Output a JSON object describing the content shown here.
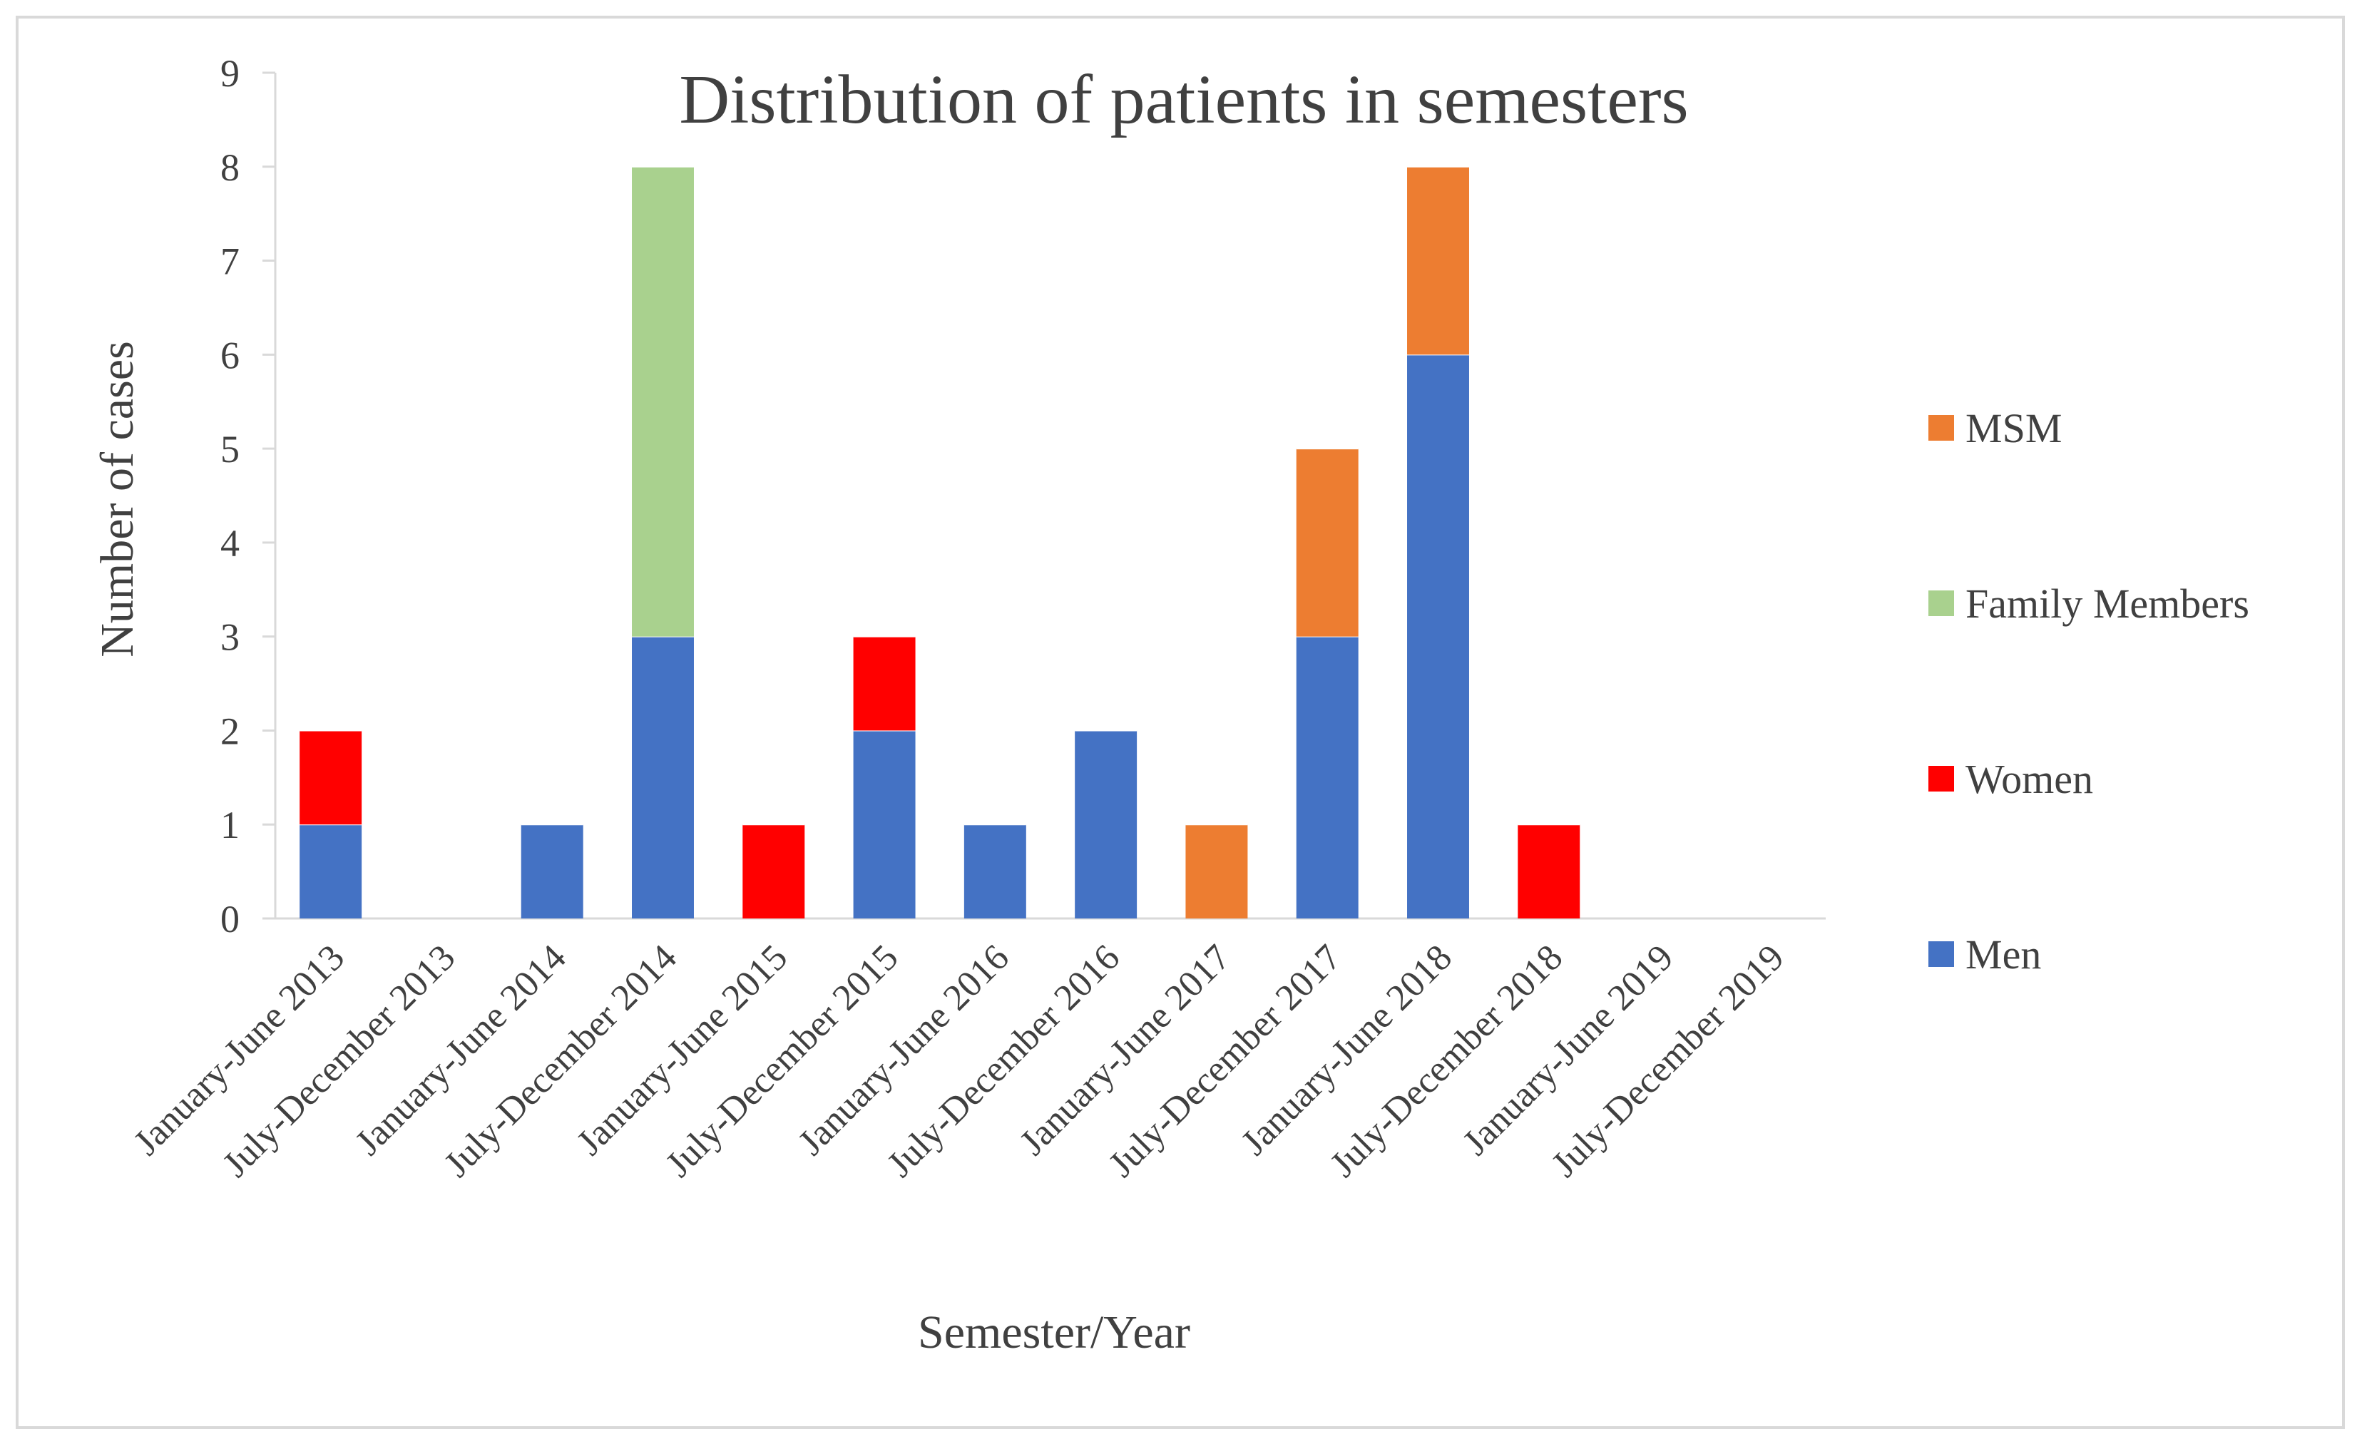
{
  "chart_data": {
    "type": "bar",
    "stacked": true,
    "title": "Distribution of patients in semesters",
    "xlabel": "Semester/Year",
    "ylabel": "Number of cases",
    "ylim": [
      0,
      9
    ],
    "yticks": [
      0,
      1,
      2,
      3,
      4,
      5,
      6,
      7,
      8,
      9
    ],
    "grid": false,
    "legend_position": "right",
    "categories": [
      "January-June 2013",
      "July-December 2013",
      "January-June 2014",
      "July-December 2014",
      "January-June 2015",
      "July-December 2015",
      "January-June 2016",
      "July-December 2016",
      "January-June 2017",
      "July-December 2017",
      "January-June 2018",
      "July-December 2018",
      "January-June 2019",
      "July-December 2019"
    ],
    "series": [
      {
        "name": "Men",
        "color": "#4472c4",
        "values": [
          1,
          0,
          1,
          3,
          0,
          2,
          1,
          2,
          0,
          3,
          6,
          0,
          0,
          0
        ]
      },
      {
        "name": "Women",
        "color": "#ff0000",
        "values": [
          1,
          0,
          0,
          0,
          1,
          1,
          0,
          0,
          0,
          0,
          0,
          1,
          0,
          0
        ]
      },
      {
        "name": "Family Members",
        "color": "#a9d18e",
        "values": [
          0,
          0,
          0,
          5,
          0,
          0,
          0,
          0,
          0,
          0,
          0,
          0,
          0,
          0
        ]
      },
      {
        "name": "MSM",
        "color": "#ed7d31",
        "values": [
          0,
          0,
          0,
          0,
          0,
          0,
          0,
          0,
          1,
          2,
          2,
          0,
          0,
          0
        ]
      }
    ],
    "legend_order": [
      "MSM",
      "Family Members",
      "Women",
      "Men"
    ]
  }
}
